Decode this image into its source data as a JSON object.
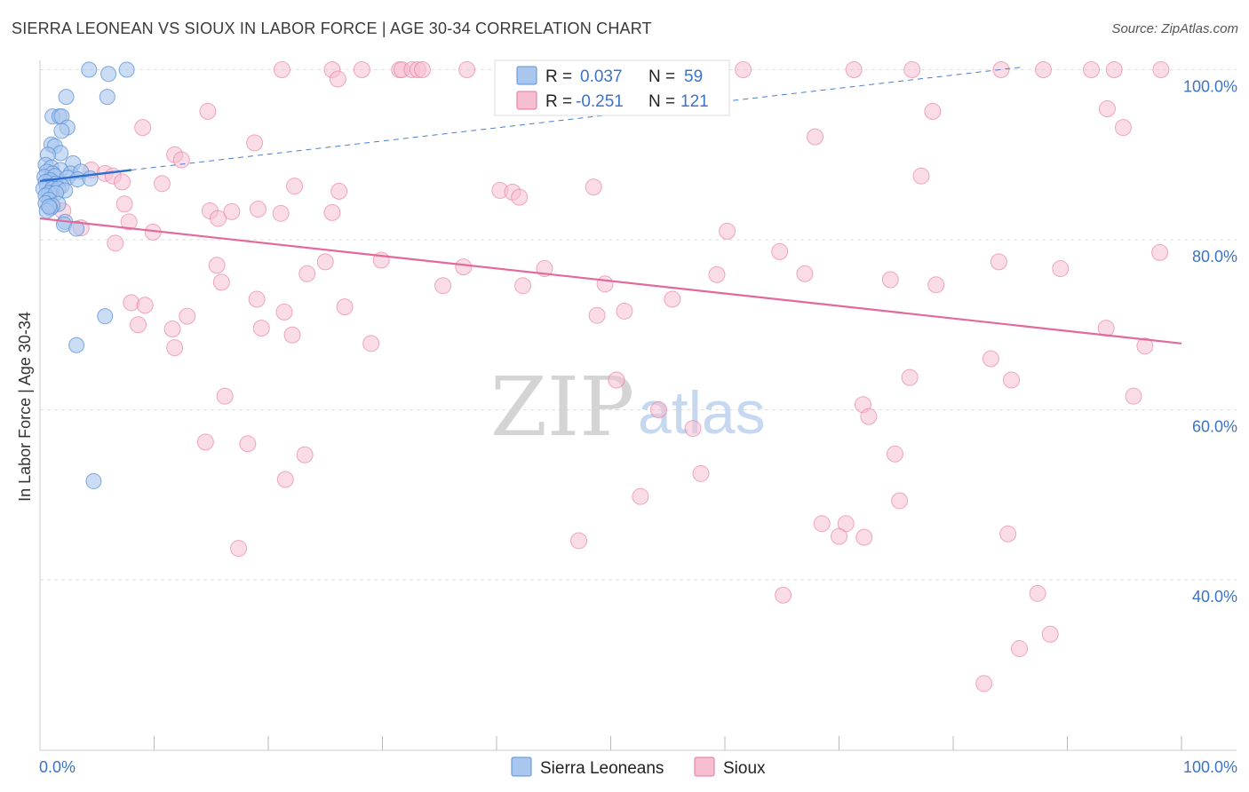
{
  "header": {
    "title": "SIERRA LEONEAN VS SIOUX IN LABOR FORCE | AGE 30-34 CORRELATION CHART",
    "source": "Source: ZipAtlas.com"
  },
  "legend": {
    "r_label": "R =",
    "n_label": "N =",
    "series": [
      {
        "name": "Sierra Leoneans",
        "r": "0.037",
        "n": "59"
      },
      {
        "name": "Sioux",
        "r": "-0.251",
        "n": "121"
      }
    ]
  },
  "watermark": {
    "part1": "ZIP",
    "part2": "atlas"
  },
  "colors": {
    "blue": "#5b8fd6",
    "blue_fill": "#a9c7ee",
    "pink": "#e8739d",
    "pink_fill": "#f6bfd1",
    "tick_label": "#3b73c7"
  },
  "chart_data": {
    "type": "scatter",
    "title": "SIERRA LEONEAN VS SIOUX IN LABOR FORCE | AGE 30-34 CORRELATION CHART",
    "xlabel": "",
    "ylabel": "In Labor Force | Age 30-34",
    "xlim": [
      0,
      100
    ],
    "ylim": [
      20,
      103
    ],
    "x_tick_labels": [
      "0.0%",
      "100.0%"
    ],
    "y_ticks": [
      40,
      60,
      80,
      100
    ],
    "y_tick_labels": [
      "40.0%",
      "60.0%",
      "80.0%",
      "100.0%"
    ],
    "series": [
      {
        "name": "Sierra Leoneans",
        "r": 0.037,
        "n": 59,
        "trend": {
          "x0": 0.0,
          "y0": 86.9,
          "x1": 8.0,
          "y1": 88.2,
          "dashed_to": {
            "x": 86.0,
            "y": 100.3
          }
        },
        "points": [
          [
            4.3,
            100
          ],
          [
            7.6,
            100
          ],
          [
            6.0,
            99.5
          ],
          [
            2.3,
            96.8
          ],
          [
            5.9,
            96.8
          ],
          [
            1.1,
            94.5
          ],
          [
            1.7,
            94.5
          ],
          [
            1.9,
            94.5
          ],
          [
            2.4,
            93.2
          ],
          [
            1.9,
            92.8
          ],
          [
            1.0,
            91.2
          ],
          [
            1.3,
            91
          ],
          [
            1.8,
            90.2
          ],
          [
            0.7,
            90.0
          ],
          [
            0.5,
            88.8
          ],
          [
            2.9,
            89.0
          ],
          [
            1.0,
            88.5
          ],
          [
            1.8,
            88.2
          ],
          [
            0.6,
            88.0
          ],
          [
            2.7,
            87.8
          ],
          [
            3.6,
            88.0
          ],
          [
            1.1,
            87.8
          ],
          [
            0.4,
            87.4
          ],
          [
            1.3,
            87.5
          ],
          [
            2.4,
            87.3
          ],
          [
            3.3,
            87.1
          ],
          [
            0.9,
            87.0
          ],
          [
            0.5,
            86.8
          ],
          [
            1.4,
            86.6
          ],
          [
            4.4,
            87.2
          ],
          [
            0.6,
            86.3
          ],
          [
            1.9,
            86.3
          ],
          [
            0.3,
            86.0
          ],
          [
            1.1,
            86.0
          ],
          [
            1.6,
            86.0
          ],
          [
            0.8,
            85.5
          ],
          [
            2.2,
            85.8
          ],
          [
            0.5,
            85.2
          ],
          [
            1.4,
            85.5
          ],
          [
            0.8,
            84.7
          ],
          [
            0.5,
            84.3
          ],
          [
            1.6,
            84.2
          ],
          [
            1.1,
            84.0
          ],
          [
            0.9,
            83.7
          ],
          [
            0.6,
            83.4
          ],
          [
            0.8,
            83.9
          ],
          [
            2.2,
            82.1
          ],
          [
            2.1,
            81.8
          ],
          [
            3.2,
            81.3
          ],
          [
            5.7,
            71.0
          ],
          [
            3.2,
            67.6
          ],
          [
            4.7,
            51.6
          ]
        ]
      },
      {
        "name": "Sioux",
        "r": -0.251,
        "n": 121,
        "trend": {
          "x0": 0.0,
          "y0": 82.5,
          "x1": 100.0,
          "y1": 67.8
        },
        "points": [
          [
            21.2,
            100
          ],
          [
            25.6,
            100
          ],
          [
            28.2,
            100
          ],
          [
            31.5,
            100
          ],
          [
            31.7,
            100
          ],
          [
            32.6,
            100
          ],
          [
            33.1,
            100
          ],
          [
            33.5,
            100
          ],
          [
            37.4,
            100
          ],
          [
            43.3,
            100
          ],
          [
            50.5,
            100
          ],
          [
            55.3,
            100
          ],
          [
            61.6,
            100
          ],
          [
            71.3,
            100
          ],
          [
            76.4,
            100
          ],
          [
            84.2,
            100
          ],
          [
            87.9,
            100
          ],
          [
            92.1,
            100
          ],
          [
            94.1,
            100
          ],
          [
            98.2,
            100
          ],
          [
            26.1,
            98.9
          ],
          [
            14.7,
            95.1
          ],
          [
            78.2,
            95.1
          ],
          [
            93.5,
            95.4
          ],
          [
            9.0,
            93.2
          ],
          [
            94.9,
            93.2
          ],
          [
            18.8,
            91.4
          ],
          [
            67.9,
            92.1
          ],
          [
            11.8,
            90.0
          ],
          [
            12.4,
            89.4
          ],
          [
            4.5,
            88.2
          ],
          [
            5.7,
            87.8
          ],
          [
            6.4,
            87.5
          ],
          [
            7.2,
            86.8
          ],
          [
            10.7,
            86.6
          ],
          [
            22.3,
            86.3
          ],
          [
            26.2,
            85.7
          ],
          [
            40.3,
            85.8
          ],
          [
            41.4,
            85.6
          ],
          [
            42.0,
            85.0
          ],
          [
            48.5,
            86.2
          ],
          [
            77.2,
            87.5
          ],
          [
            1.0,
            84.0
          ],
          [
            2.0,
            83.4
          ],
          [
            7.4,
            84.2
          ],
          [
            14.9,
            83.4
          ],
          [
            15.6,
            82.5
          ],
          [
            16.8,
            83.3
          ],
          [
            19.1,
            83.6
          ],
          [
            21.1,
            83.1
          ],
          [
            25.6,
            83.2
          ],
          [
            7.8,
            82.1
          ],
          [
            3.6,
            81.4
          ],
          [
            9.9,
            80.9
          ],
          [
            6.6,
            79.6
          ],
          [
            60.2,
            81.0
          ],
          [
            64.8,
            78.6
          ],
          [
            98.1,
            78.5
          ],
          [
            15.5,
            77.0
          ],
          [
            25.0,
            77.4
          ],
          [
            29.9,
            77.6
          ],
          [
            37.1,
            76.8
          ],
          [
            44.2,
            76.6
          ],
          [
            84.0,
            77.4
          ],
          [
            89.4,
            76.6
          ],
          [
            15.9,
            75.0
          ],
          [
            19.0,
            73.0
          ],
          [
            23.4,
            76.0
          ],
          [
            35.3,
            74.6
          ],
          [
            42.3,
            74.6
          ],
          [
            49.5,
            74.8
          ],
          [
            59.3,
            75.9
          ],
          [
            67.0,
            76.0
          ],
          [
            74.5,
            75.3
          ],
          [
            78.5,
            74.7
          ],
          [
            8.0,
            72.6
          ],
          [
            9.2,
            72.3
          ],
          [
            12.9,
            71.0
          ],
          [
            19.4,
            69.6
          ],
          [
            21.4,
            71.5
          ],
          [
            26.7,
            72.1
          ],
          [
            48.8,
            71.1
          ],
          [
            51.2,
            71.6
          ],
          [
            55.4,
            73.0
          ],
          [
            8.6,
            70.0
          ],
          [
            11.6,
            69.5
          ],
          [
            22.1,
            68.8
          ],
          [
            29.0,
            67.8
          ],
          [
            11.8,
            67.3
          ],
          [
            93.4,
            69.6
          ],
          [
            96.8,
            67.5
          ],
          [
            83.3,
            66.0
          ],
          [
            76.2,
            63.8
          ],
          [
            85.1,
            63.5
          ],
          [
            50.5,
            63.5
          ],
          [
            16.2,
            61.6
          ],
          [
            95.8,
            61.6
          ],
          [
            54.2,
            60.0
          ],
          [
            57.2,
            57.8
          ],
          [
            72.1,
            60.6
          ],
          [
            72.6,
            59.2
          ],
          [
            14.5,
            56.2
          ],
          [
            18.2,
            56.0
          ],
          [
            23.2,
            54.7
          ],
          [
            74.9,
            54.8
          ],
          [
            21.5,
            51.8
          ],
          [
            57.9,
            52.5
          ],
          [
            52.6,
            49.8
          ],
          [
            75.3,
            49.3
          ],
          [
            68.5,
            46.6
          ],
          [
            70.6,
            46.6
          ],
          [
            70.0,
            45.1
          ],
          [
            72.2,
            45.0
          ],
          [
            84.8,
            45.4
          ],
          [
            47.2,
            44.6
          ],
          [
            17.4,
            43.7
          ],
          [
            65.1,
            38.2
          ],
          [
            87.4,
            38.4
          ],
          [
            88.5,
            33.6
          ],
          [
            85.8,
            31.9
          ],
          [
            82.7,
            27.8
          ]
        ]
      }
    ]
  }
}
